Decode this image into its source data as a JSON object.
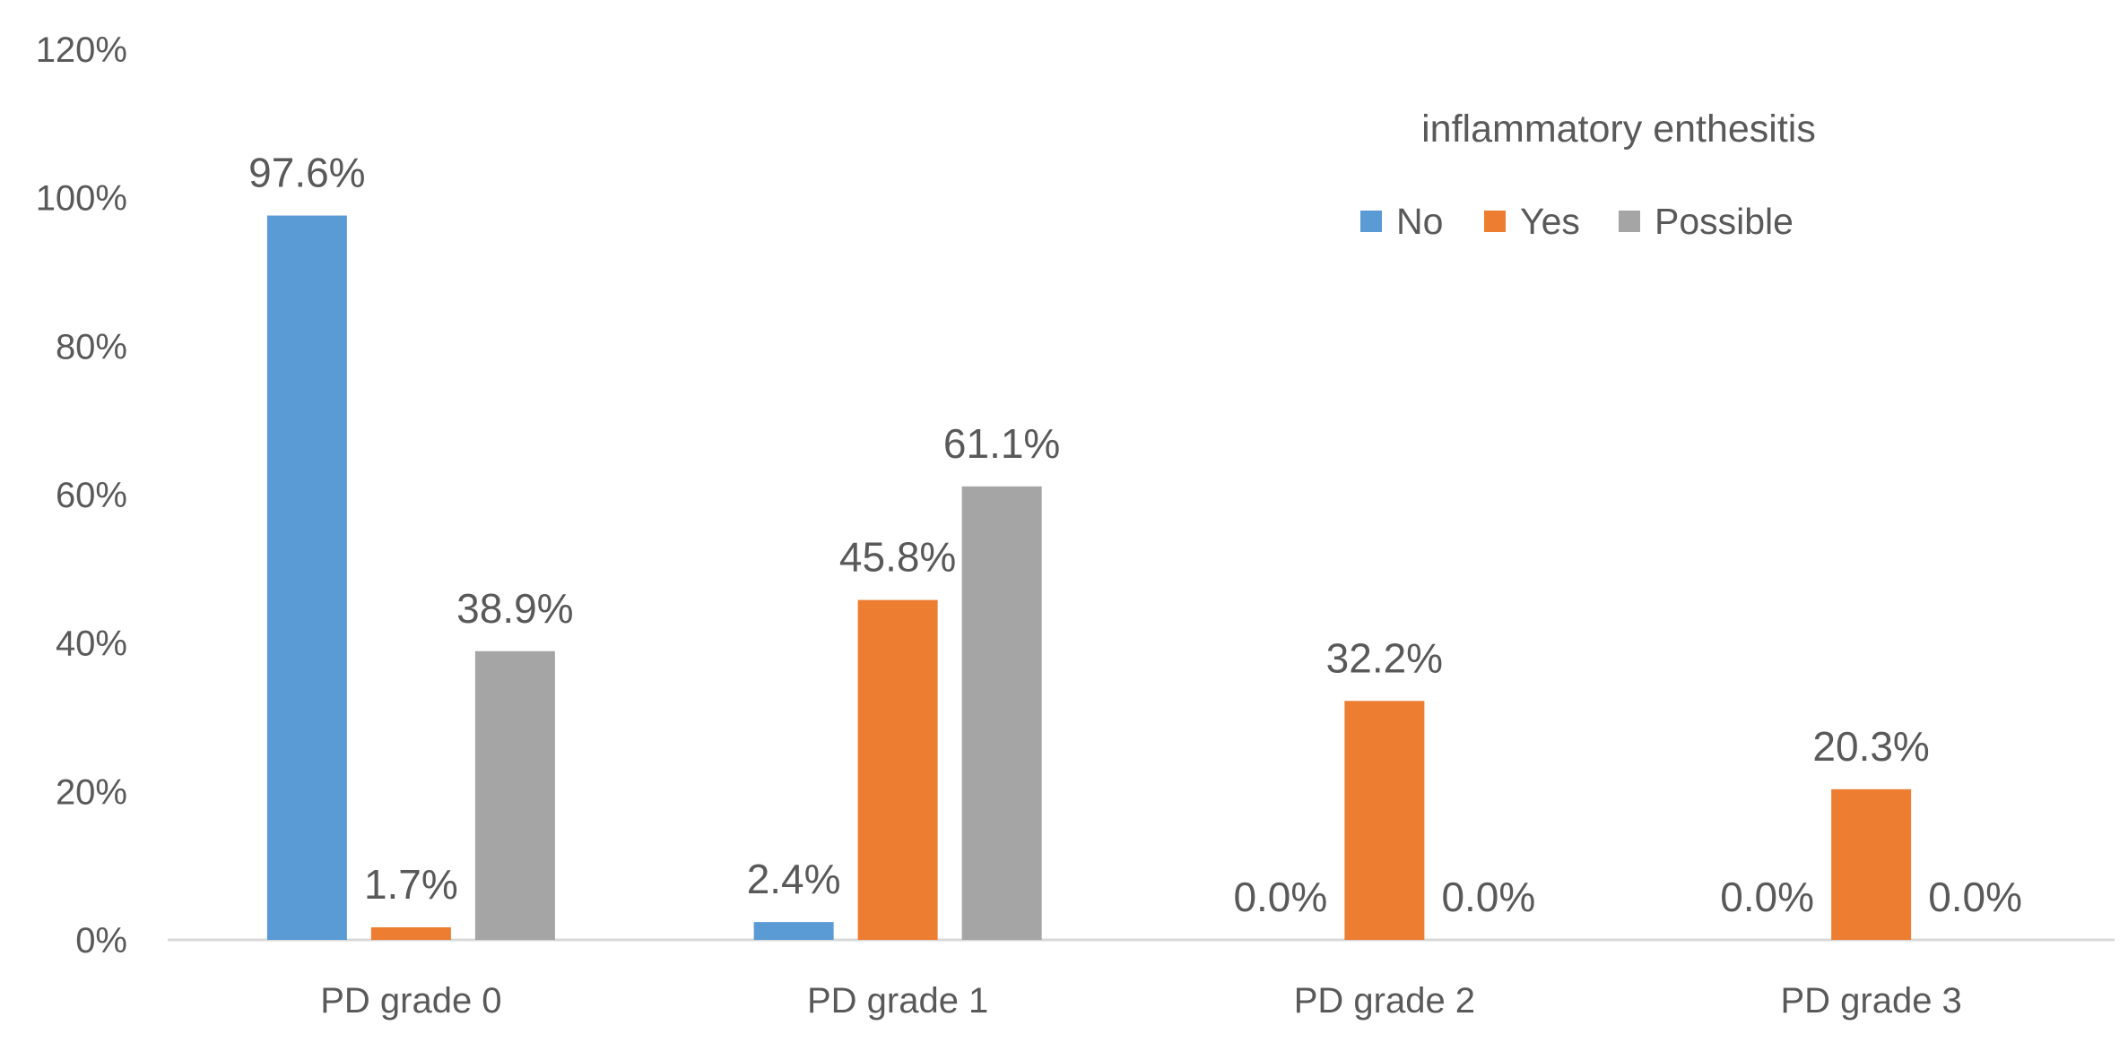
{
  "chart_data": {
    "type": "bar",
    "categories": [
      "PD grade 0",
      "PD grade 1",
      "PD grade 2",
      "PD grade 3"
    ],
    "series": [
      {
        "name": "No",
        "color": "#5B9BD5",
        "values": [
          97.6,
          2.4,
          0.0,
          0.0
        ]
      },
      {
        "name": "Yes",
        "color": "#ED7D31",
        "values": [
          1.7,
          45.8,
          32.2,
          20.3
        ]
      },
      {
        "name": "Possible",
        "color": "#A5A5A5",
        "values": [
          38.9,
          61.1,
          0.0,
          0.0
        ]
      }
    ],
    "data_labels": [
      [
        "97.6%",
        "2.4%",
        "0.0%",
        "0.0%"
      ],
      [
        "1.7%",
        "45.8%",
        "32.2%",
        "20.3%"
      ],
      [
        "38.9%",
        "61.1%",
        "0.0%",
        "0.0%"
      ]
    ],
    "show_data_label": [
      [
        true,
        true,
        true,
        true
      ],
      [
        true,
        true,
        true,
        true
      ],
      [
        true,
        true,
        true,
        true
      ]
    ],
    "yticks": [
      0,
      20,
      40,
      60,
      80,
      100,
      120
    ],
    "ytick_labels": [
      "0%",
      "20%",
      "40%",
      "60%",
      "80%",
      "100%",
      "120%"
    ],
    "ylim": [
      0,
      120
    ],
    "legend_title": "inflammatory enthesitis",
    "legend_position": "top-right",
    "title": "",
    "xlabel": "",
    "ylabel": "",
    "grid": false,
    "axis_color": "#D9D9D9"
  }
}
